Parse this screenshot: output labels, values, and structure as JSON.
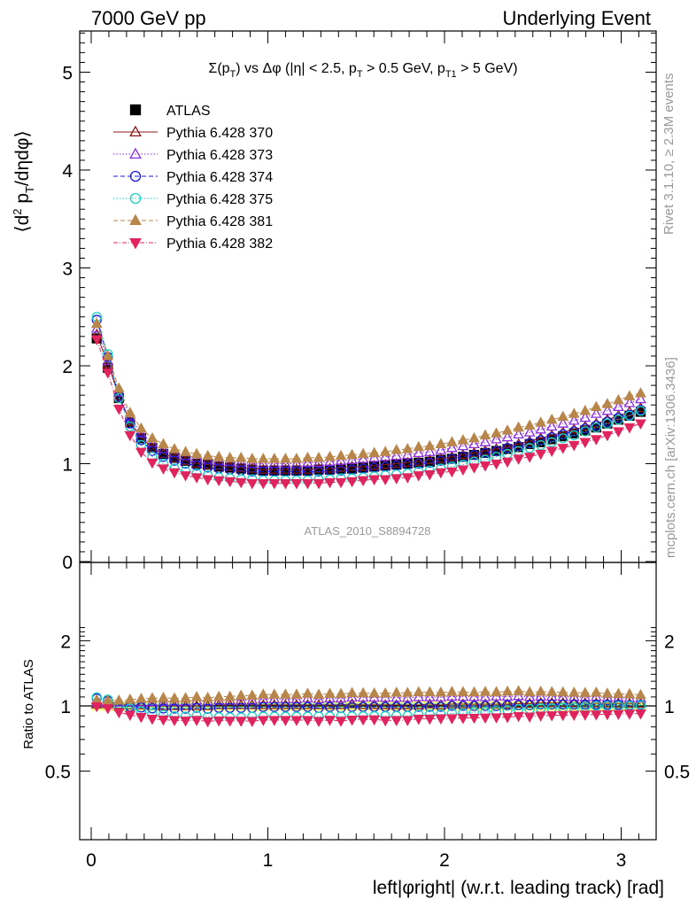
{
  "header": {
    "left": "7000 GeV pp",
    "right": "Underlying Event"
  },
  "chart_data": [
    {
      "type": "scatter",
      "title": "Σ(p_T) vs Δφ (|η| < 2.5, p_T > 0.5 GeV, p_T1 > 5 GeV)",
      "ylabel": "⟨d² p_T/dηdφ⟩",
      "xlabel": "left|φright| (w.r.t. leading track) [rad]",
      "xlim": [
        -0.1,
        3.2
      ],
      "ylim": [
        0,
        5.4
      ],
      "xticks": [
        "0",
        "1",
        "2",
        "3"
      ],
      "yticks": [
        "1",
        "2",
        "3",
        "4",
        "5"
      ],
      "annotation": "ATLAS_2010_S8894728",
      "legend_position": "top-left",
      "x": [
        0.0314,
        0.0942,
        0.157,
        0.2199,
        0.2827,
        0.3456,
        0.4084,
        0.4712,
        0.5341,
        0.5969,
        0.6597,
        0.7226,
        0.7854,
        0.8482,
        0.9111,
        0.9739,
        1.0367,
        1.0996,
        1.1624,
        1.2252,
        1.2881,
        1.3509,
        1.4137,
        1.4765,
        1.5394,
        1.6022,
        1.665,
        1.7279,
        1.7907,
        1.8535,
        1.9164,
        1.9792,
        2.042,
        2.1049,
        2.1677,
        2.2305,
        2.2934,
        2.3562,
        2.419,
        2.4819,
        2.5447,
        2.6075,
        2.6704,
        2.7332,
        2.796,
        2.8588,
        2.9217,
        2.9845,
        3.0473,
        3.1102
      ],
      "series": [
        {
          "name": "ATLAS",
          "values": [
            2.28,
            1.98,
            1.67,
            1.42,
            1.26,
            1.16,
            1.1,
            1.06,
            1.03,
            1.0,
            0.99,
            0.97,
            0.96,
            0.95,
            0.94,
            0.93,
            0.93,
            0.93,
            0.93,
            0.93,
            0.94,
            0.94,
            0.95,
            0.95,
            0.96,
            0.97,
            0.98,
            0.99,
            1.0,
            1.01,
            1.02,
            1.04,
            1.05,
            1.07,
            1.09,
            1.11,
            1.13,
            1.15,
            1.17,
            1.2,
            1.22,
            1.25,
            1.28,
            1.31,
            1.34,
            1.37,
            1.41,
            1.45,
            1.49,
            1.53
          ]
        },
        {
          "name": "Pythia 6.428 370",
          "values": [
            2.32,
            2.02,
            1.69,
            1.43,
            1.27,
            1.16,
            1.1,
            1.06,
            1.03,
            1.0,
            0.99,
            0.98,
            0.97,
            0.96,
            0.95,
            0.94,
            0.94,
            0.94,
            0.94,
            0.94,
            0.95,
            0.95,
            0.96,
            0.97,
            0.97,
            0.98,
            0.99,
            1.0,
            1.01,
            1.02,
            1.04,
            1.05,
            1.07,
            1.09,
            1.11,
            1.13,
            1.15,
            1.17,
            1.2,
            1.23,
            1.26,
            1.29,
            1.32,
            1.35,
            1.38,
            1.41,
            1.45,
            1.49,
            1.53,
            1.57
          ]
        },
        {
          "name": "Pythia 6.428 373",
          "values": [
            2.38,
            2.05,
            1.73,
            1.48,
            1.31,
            1.21,
            1.15,
            1.11,
            1.08,
            1.06,
            1.04,
            1.03,
            1.02,
            1.01,
            1.0,
            1.0,
            1.0,
            1.0,
            1.0,
            1.01,
            1.01,
            1.02,
            1.03,
            1.04,
            1.05,
            1.06,
            1.07,
            1.08,
            1.09,
            1.11,
            1.12,
            1.14,
            1.16,
            1.18,
            1.2,
            1.22,
            1.25,
            1.27,
            1.3,
            1.32,
            1.35,
            1.38,
            1.41,
            1.44,
            1.47,
            1.51,
            1.54,
            1.58,
            1.62,
            1.66
          ]
        },
        {
          "name": "Pythia 6.428 374",
          "values": [
            2.47,
            2.09,
            1.69,
            1.41,
            1.24,
            1.13,
            1.07,
            1.03,
            1.0,
            0.98,
            0.96,
            0.95,
            0.94,
            0.93,
            0.92,
            0.92,
            0.92,
            0.92,
            0.92,
            0.92,
            0.92,
            0.93,
            0.93,
            0.94,
            0.95,
            0.96,
            0.97,
            0.98,
            0.99,
            1.0,
            1.01,
            1.03,
            1.05,
            1.07,
            1.09,
            1.11,
            1.13,
            1.16,
            1.18,
            1.21,
            1.24,
            1.27,
            1.3,
            1.33,
            1.36,
            1.39,
            1.43,
            1.47,
            1.5,
            1.55
          ]
        },
        {
          "name": "Pythia 6.428 375",
          "values": [
            2.5,
            2.12,
            1.67,
            1.38,
            1.19,
            1.07,
            1.0,
            0.95,
            0.92,
            0.9,
            0.88,
            0.86,
            0.85,
            0.84,
            0.84,
            0.83,
            0.83,
            0.83,
            0.83,
            0.83,
            0.84,
            0.84,
            0.85,
            0.85,
            0.86,
            0.87,
            0.88,
            0.89,
            0.9,
            0.92,
            0.93,
            0.95,
            0.97,
            0.99,
            1.02,
            1.04,
            1.07,
            1.1,
            1.13,
            1.16,
            1.19,
            1.22,
            1.26,
            1.29,
            1.33,
            1.37,
            1.41,
            1.45,
            1.49,
            1.54
          ]
        },
        {
          "name": "Pythia 6.428 381",
          "values": [
            2.43,
            2.1,
            1.77,
            1.52,
            1.36,
            1.26,
            1.2,
            1.15,
            1.12,
            1.1,
            1.08,
            1.07,
            1.06,
            1.06,
            1.05,
            1.05,
            1.05,
            1.05,
            1.05,
            1.06,
            1.06,
            1.07,
            1.08,
            1.09,
            1.1,
            1.11,
            1.12,
            1.14,
            1.15,
            1.17,
            1.18,
            1.2,
            1.22,
            1.24,
            1.26,
            1.29,
            1.31,
            1.34,
            1.37,
            1.39,
            1.42,
            1.45,
            1.48,
            1.51,
            1.54,
            1.58,
            1.61,
            1.65,
            1.69,
            1.72
          ]
        },
        {
          "name": "Pythia 6.428 382",
          "values": [
            2.27,
            1.93,
            1.56,
            1.29,
            1.12,
            1.01,
            0.95,
            0.91,
            0.88,
            0.86,
            0.84,
            0.83,
            0.82,
            0.81,
            0.8,
            0.8,
            0.8,
            0.8,
            0.8,
            0.8,
            0.8,
            0.81,
            0.81,
            0.82,
            0.83,
            0.84,
            0.84,
            0.85,
            0.86,
            0.88,
            0.89,
            0.91,
            0.92,
            0.94,
            0.96,
            0.98,
            1.0,
            1.02,
            1.05,
            1.07,
            1.1,
            1.13,
            1.16,
            1.19,
            1.22,
            1.25,
            1.29,
            1.33,
            1.37,
            1.41
          ]
        }
      ]
    },
    {
      "type": "scatter",
      "ylabel": "Ratio to ATLAS",
      "xlabel": "left|φright| (w.r.t. leading track) [rad]",
      "ylim": [
        0.4,
        2.4
      ],
      "yticks": [
        "0.5",
        "1",
        "2"
      ],
      "band": {
        "inner": 0.03,
        "outer": 0.05
      },
      "series_ratio_note": "series values divided by ATLAS"
    }
  ],
  "side_text": {
    "rivet": "Rivet 3.1.10, ≥ 2.3M events",
    "mcplots": "mcplots.cern.ch [arXiv:1306.3436]"
  },
  "colors": {
    "atlas": "#000000",
    "s370": "#8b1a1a",
    "s373": "#8a2be2",
    "s374": "#1a1ad8",
    "s375": "#19d1c4",
    "s381": "#b8864b",
    "s382": "#e0245e",
    "band_inner": "#ffff80",
    "band_outer": "#99ff99"
  }
}
